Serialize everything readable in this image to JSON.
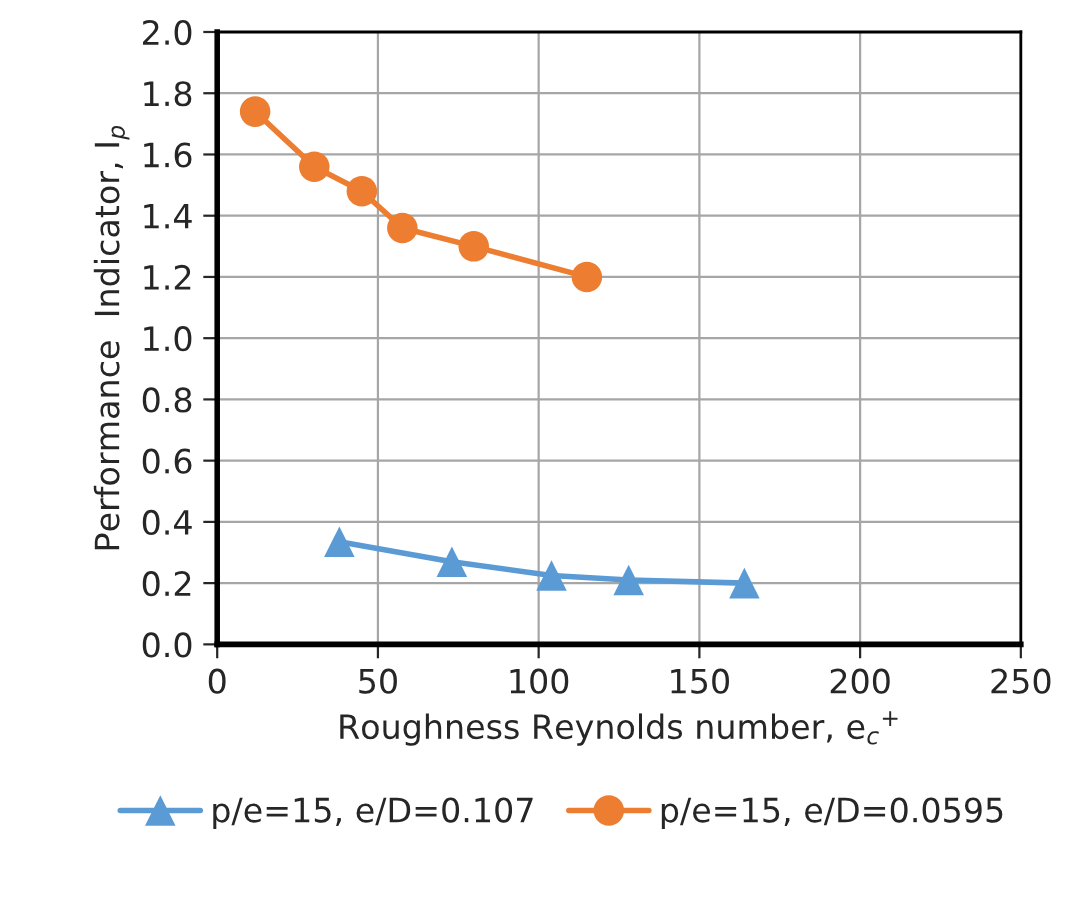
{
  "chart_data": {
    "type": "line",
    "xlabel": "Roughness Reynolds number, e$_{c}$$^{+}$",
    "ylabel": "Performance  Indicator, I$_{p}$",
    "series": [
      {
        "name": "p/e=15, e/D=0.107",
        "color": "#5b9bd5",
        "marker": "triangle",
        "x": [
          38,
          73,
          104,
          128,
          164
        ],
        "values": [
          0.335,
          0.27,
          0.225,
          0.21,
          0.2
        ]
      },
      {
        "name": "p/e=15, e/D=0.0595",
        "color": "#ed7d31",
        "marker": "circle",
        "x": [
          11.8,
          30.2,
          45,
          57.6,
          79.8,
          115
        ],
        "values": [
          1.74,
          1.56,
          1.48,
          1.36,
          1.3,
          1.2
        ]
      }
    ],
    "xlim": [
      0,
      250
    ],
    "xticks": [
      0,
      50,
      100,
      150,
      200,
      250
    ],
    "ylim": [
      0,
      2.0
    ],
    "yticks": [
      {
        "value": 0,
        "label": "0.0"
      },
      {
        "value": 0.2,
        "label": "0.2"
      },
      {
        "value": 0.4,
        "label": "0.4"
      },
      {
        "value": 0.6,
        "label": "0.6"
      },
      {
        "value": 0.8,
        "label": "0.8"
      },
      {
        "value": 1.0,
        "label": "1.0"
      },
      {
        "value": 1.2,
        "label": "1.2"
      },
      {
        "value": 1.4,
        "label": "1.4"
      },
      {
        "value": 1.6,
        "label": "1.6"
      },
      {
        "value": 1.8,
        "label": "1.8"
      },
      {
        "value": 2.0,
        "label": "2.0"
      }
    ],
    "grid": true,
    "legend": "bottom",
    "line_style": "solid"
  }
}
